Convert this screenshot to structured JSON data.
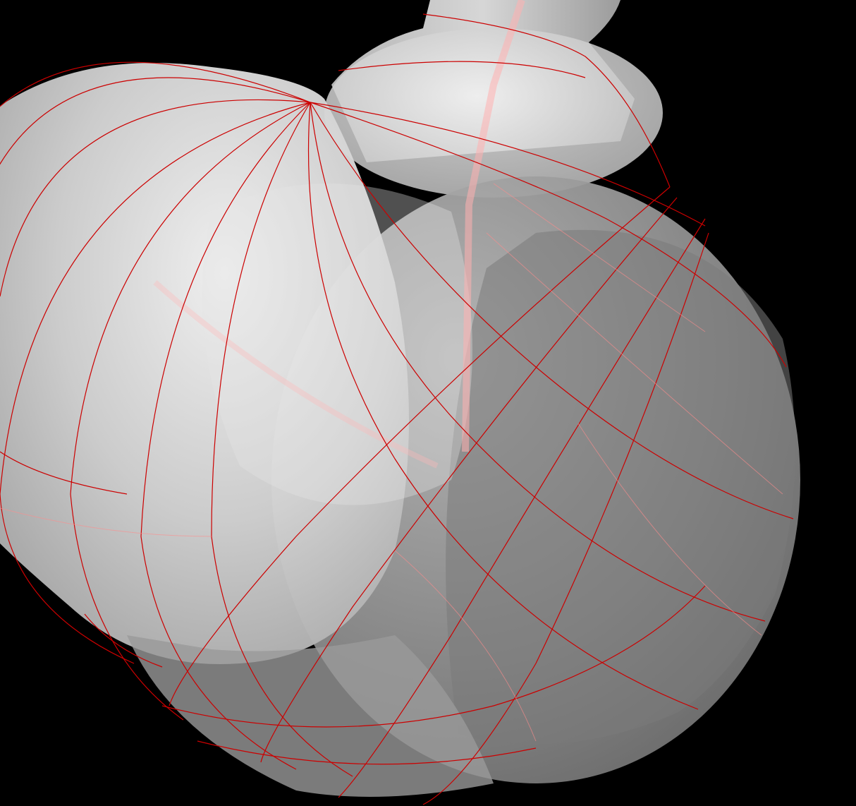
{
  "viewport": {
    "background": "#000000"
  },
  "model": {
    "surface_color": "#d8d8d8",
    "shadow_color": "#6e6e6e",
    "highlight_color": "#f4f4f4"
  },
  "curves": {
    "color": "#cc0000",
    "faint_color": "#ff8c8c"
  }
}
